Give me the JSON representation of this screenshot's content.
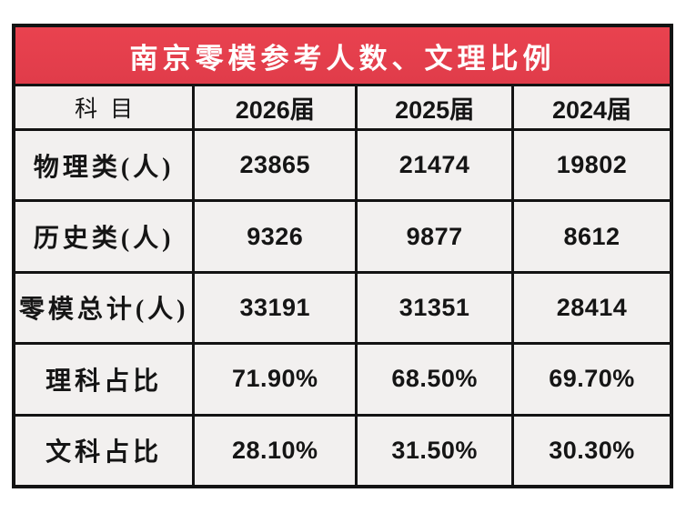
{
  "chart_data": {
    "type": "table",
    "title": "南京零模参考人数、文理比例",
    "columns": [
      "科目",
      "2026届",
      "2025届",
      "2024届"
    ],
    "rows": [
      [
        "物理类(人)",
        "23865",
        "21474",
        "19802"
      ],
      [
        "历史类(人)",
        "9326",
        "9877",
        "8612"
      ],
      [
        "零模总计(人)",
        "33191",
        "31351",
        "28414"
      ],
      [
        "理科占比",
        "71.90%",
        "68.50%",
        "69.70%"
      ],
      [
        "文科占比",
        "28.10%",
        "31.50%",
        "30.30%"
      ]
    ],
    "layout": {
      "title_position": "top-banner",
      "grid": "on",
      "header_row": true
    }
  },
  "colors": {
    "header_bg": "#e9424f",
    "border": "#131313",
    "cell_bg": "#f2f0ef",
    "title_color": "#ffffff",
    "text_color": "#151515",
    "page_bg": "#ffffff"
  }
}
